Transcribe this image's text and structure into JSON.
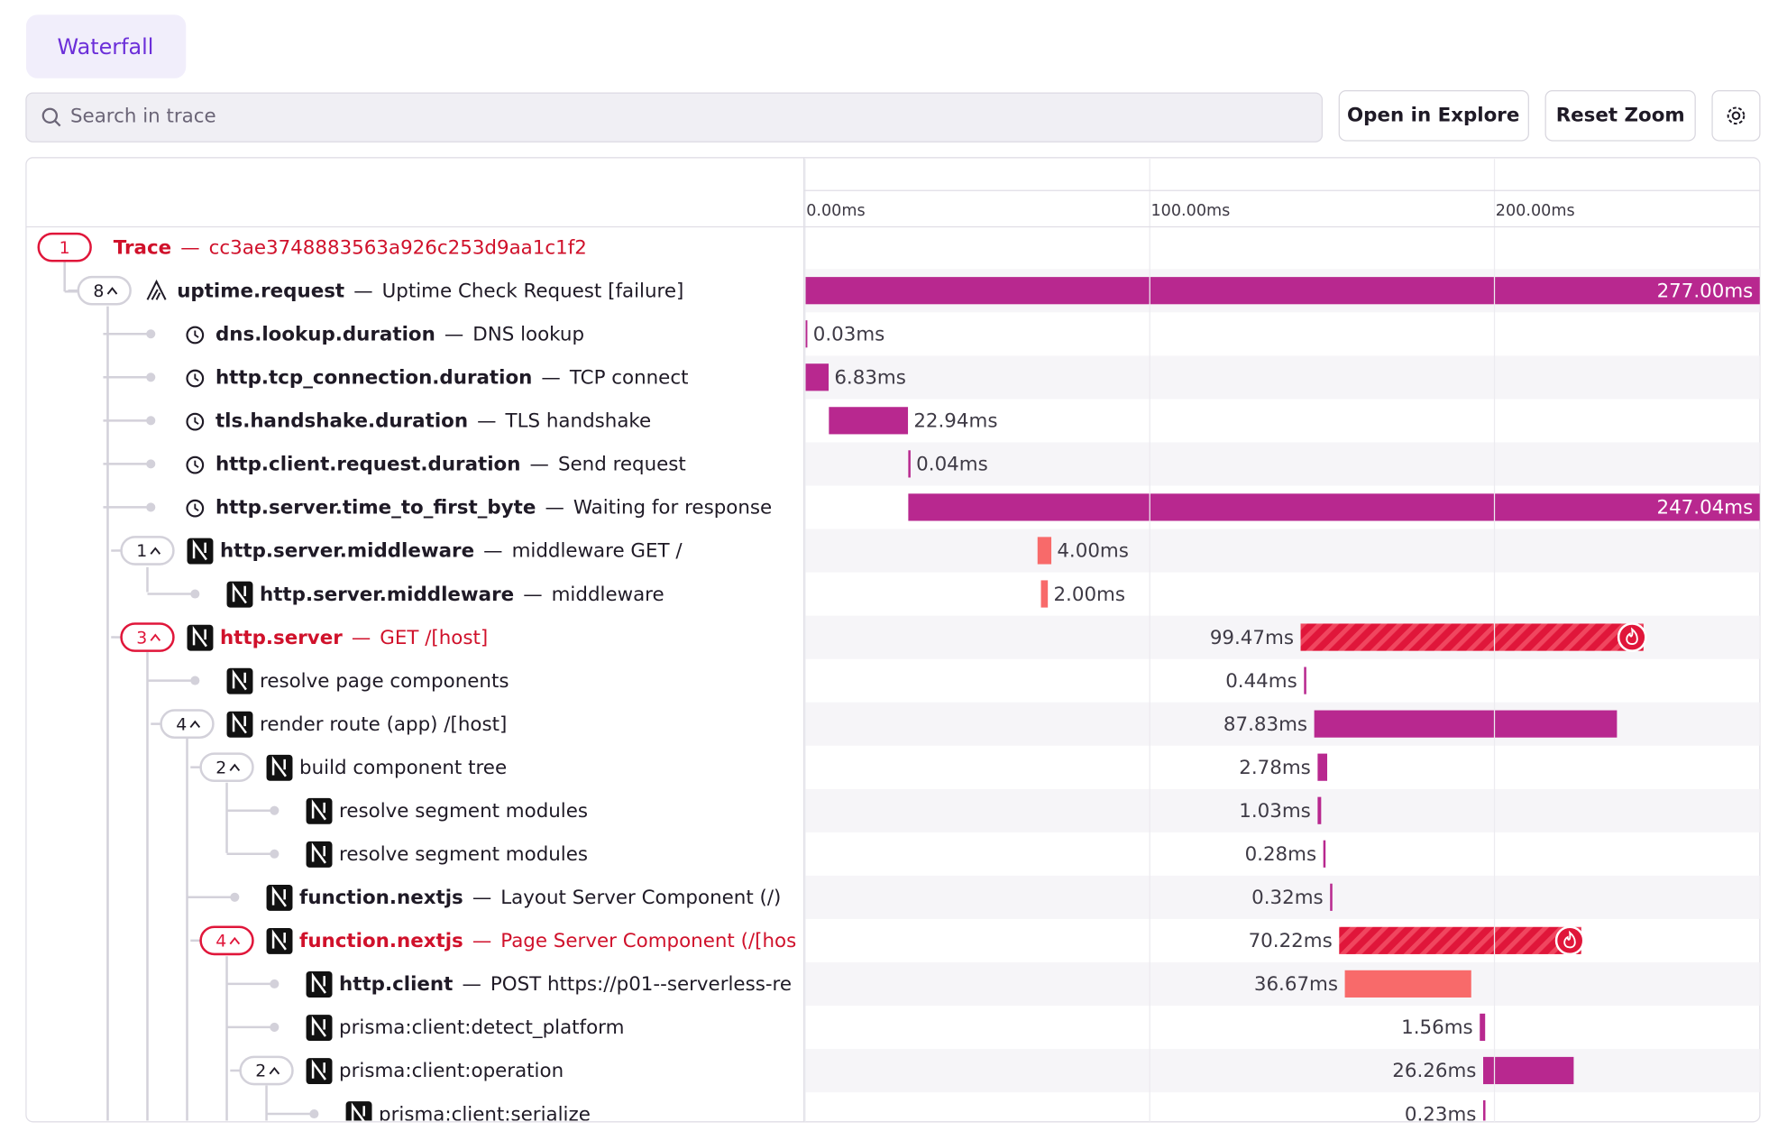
{
  "tab": "Waterfall",
  "search_placeholder": "Search in trace",
  "buttons": [
    "Open in Explore",
    "Reset Zoom"
  ],
  "separator": "—",
  "timeline": {
    "xlim": [
      0,
      277
    ],
    "ticks": [
      {
        "value": 0,
        "label": "0.00ms"
      },
      {
        "value": 100,
        "label": "100.00ms"
      },
      {
        "value": 200,
        "label": "200.00ms"
      }
    ]
  },
  "trace": {
    "count": 1,
    "label": "Trace",
    "id": "cc3ae3748883563a926c253d9aa1c1f2"
  },
  "spans": [
    {
      "name": "uptime.request",
      "description": "Uptime Check Request [failure]",
      "count": 8,
      "duration": {
        "value": 277,
        "label": "277.00ms"
      }
    },
    {
      "name": "dns.lookup.duration",
      "description": "DNS lookup",
      "duration": {
        "value": 0.03,
        "label": "0.03ms"
      }
    },
    {
      "name": "http.tcp_connection.duration",
      "description": "TCP connect",
      "duration": {
        "value": 6.83,
        "label": "6.83ms"
      }
    },
    {
      "name": "tls.handshake.duration",
      "description": "TLS handshake",
      "duration": {
        "value": 22.94,
        "label": "22.94ms"
      }
    },
    {
      "name": "http.client.request.duration",
      "description": "Send request",
      "duration": {
        "value": 0.04,
        "label": "0.04ms"
      }
    },
    {
      "name": "http.server.time_to_first_byte",
      "description": "Waiting for response",
      "duration": {
        "value": 247.04,
        "label": "247.04ms"
      }
    },
    {
      "name": "http.server.middleware",
      "description": "middleware GET /",
      "count": 1,
      "duration": {
        "value": 4,
        "label": "4.00ms"
      }
    },
    {
      "name": "http.server.middleware",
      "description": "middleware",
      "duration": {
        "value": 2,
        "label": "2.00ms"
      }
    },
    {
      "name": "http.server",
      "description": "GET /[host]",
      "count": 3,
      "duration": {
        "value": 99.47,
        "label": "99.47ms"
      }
    },
    {
      "name": "resolve page components",
      "duration": {
        "value": 0.44,
        "label": "0.44ms"
      }
    },
    {
      "name": "render route (app) /[host]",
      "count": 4,
      "duration": {
        "value": 87.83,
        "label": "87.83ms"
      }
    },
    {
      "name": "build component tree",
      "count": 2,
      "duration": {
        "value": 2.78,
        "label": "2.78ms"
      }
    },
    {
      "name": "resolve segment modules",
      "duration": {
        "value": 1.03,
        "label": "1.03ms"
      }
    },
    {
      "name": "resolve segment modules",
      "duration": {
        "value": 0.28,
        "label": "0.28ms"
      }
    },
    {
      "name": "function.nextjs",
      "description": "Layout Server Component (/)",
      "duration": {
        "value": 0.32,
        "label": "0.32ms"
      }
    },
    {
      "name": "function.nextjs",
      "description": "Page Server Component (/[hos",
      "count": 4,
      "duration": {
        "value": 70.22,
        "label": "70.22ms"
      }
    },
    {
      "name": "http.client",
      "description": "POST https://p01--serverless-re",
      "duration": {
        "value": 36.67,
        "label": "36.67ms"
      }
    },
    {
      "name": "prisma:client:detect_platform",
      "duration": {
        "value": 1.56,
        "label": "1.56ms"
      }
    },
    {
      "name": "prisma:client:operation",
      "count": 2,
      "duration": {
        "value": 26.26,
        "label": "26.26ms"
      }
    },
    {
      "name": "prisma:client:serialize",
      "duration": {
        "value": 0.23,
        "label": "0.23ms"
      }
    }
  ]
}
